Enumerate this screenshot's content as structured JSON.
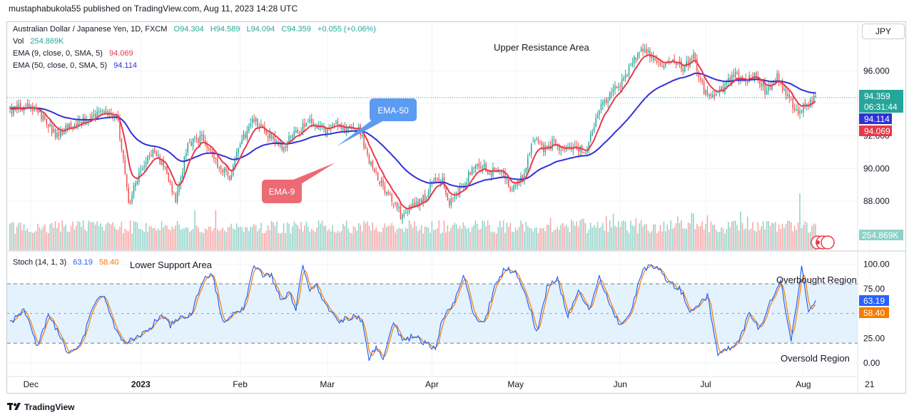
{
  "header": {
    "publisher_line": "mustaphabukola55 published on TradingView.com, Aug 11, 2023 14:28 UTC"
  },
  "currency_button": "JPY",
  "legend": {
    "symbol": "Australian Dollar / Japanese Yen, 1D, FXCM",
    "o": "O94.304",
    "h": "H94.589",
    "l": "L94.094",
    "c": "C94.359",
    "change": "+0.055 (+0.06%)",
    "vol_label": "Vol",
    "vol_value": "254.869K",
    "ema9_label": "EMA (9, close, 0, SMA, 5)",
    "ema9_value": "94.069",
    "ema50_label": "EMA (50, close, 0, SMA, 5)",
    "ema50_value": "94.114",
    "stoch_label": "Stoch (14, 1, 3)",
    "stoch_k": "63.19",
    "stoch_d": "58.40"
  },
  "annotations": {
    "upper_resistance": "Upper Resistance Area",
    "lower_support": "Lower Support Area",
    "ema50_callout": "EMA-50",
    "ema9_callout": "EMA-9",
    "overbought": "Overbought Region",
    "oversold": "Oversold Region"
  },
  "price_tags": {
    "last": "94.359",
    "countdown": "06:31:44",
    "ema50": "94.114",
    "ema9": "94.069",
    "volume": "254.869K",
    "stoch_k": "63.19",
    "stoch_d": "58.40"
  },
  "footer": {
    "brand": "TradingView"
  },
  "colors": {
    "up": "#26a69a",
    "down": "#ef5350",
    "ema9": "#e8394a",
    "ema50": "#3131d6",
    "vol_up": "#8fd1c8",
    "vol_down": "#f5a4a4",
    "stoch_k": "#2962ff",
    "stoch_d": "#f57c00",
    "callout50": "#5b9cf2",
    "callout9": "#ec6a74",
    "stoch_band": "#e3f2fd"
  },
  "chart_data": [
    {
      "type": "candlestick",
      "y_axis_ticks": [
        "96.000",
        "94.000",
        "92.000",
        "90.000",
        "88.000"
      ],
      "y_tick_values": [
        96,
        94,
        92,
        90,
        88
      ],
      "ylim": [
        85.9,
        98.6
      ],
      "x_axis_ticks": [
        "Dec",
        "2023",
        "Feb",
        "Mar",
        "Apr",
        "May",
        "Jun",
        "Jul",
        "Aug",
        "21"
      ],
      "keypoints": [
        [
          0,
          93.6
        ],
        [
          10,
          93.9
        ],
        [
          18,
          93.2
        ],
        [
          26,
          92.1
        ],
        [
          36,
          92.7
        ],
        [
          45,
          93.1
        ],
        [
          54,
          93.6
        ],
        [
          62,
          92.9
        ],
        [
          68,
          87.8
        ],
        [
          74,
          89.6
        ],
        [
          82,
          91.2
        ],
        [
          88,
          90.2
        ],
        [
          95,
          88.0
        ],
        [
          102,
          91.5
        ],
        [
          110,
          91.9
        ],
        [
          118,
          90.4
        ],
        [
          126,
          89.4
        ],
        [
          132,
          91.6
        ],
        [
          140,
          93.0
        ],
        [
          148,
          92.1
        ],
        [
          156,
          91.3
        ],
        [
          164,
          92.2
        ],
        [
          172,
          92.9
        ],
        [
          180,
          92.3
        ],
        [
          188,
          92.7
        ],
        [
          194,
          92.5
        ],
        [
          200,
          92.6
        ],
        [
          206,
          90.5
        ],
        [
          212,
          89.3
        ],
        [
          218,
          88.2
        ],
        [
          224,
          87.2
        ],
        [
          232,
          87.7
        ],
        [
          238,
          88.2
        ],
        [
          244,
          89.6
        ],
        [
          248,
          89.2
        ],
        [
          252,
          87.9
        ],
        [
          258,
          88.6
        ],
        [
          264,
          89.7
        ],
        [
          270,
          90.2
        ],
        [
          276,
          89.8
        ],
        [
          282,
          89.9
        ],
        [
          288,
          88.6
        ],
        [
          294,
          89.5
        ],
        [
          300,
          91.9
        ],
        [
          306,
          91.1
        ],
        [
          312,
          91.6
        ],
        [
          318,
          90.9
        ],
        [
          324,
          91.4
        ],
        [
          330,
          90.9
        ],
        [
          336,
          93.1
        ],
        [
          342,
          94.3
        ],
        [
          350,
          95.2
        ],
        [
          356,
          96.4
        ],
        [
          362,
          97.4
        ],
        [
          368,
          96.8
        ],
        [
          374,
          96.1
        ],
        [
          380,
          96.6
        ],
        [
          386,
          96.2
        ],
        [
          392,
          96.9
        ],
        [
          398,
          94.7
        ],
        [
          404,
          94.2
        ],
        [
          410,
          95.1
        ],
        [
          416,
          95.8
        ],
        [
          422,
          95.3
        ],
        [
          428,
          95.8
        ],
        [
          434,
          94.6
        ],
        [
          440,
          95.7
        ],
        [
          446,
          94.5
        ],
        [
          452,
          93.4
        ],
        [
          458,
          94.0
        ],
        [
          462,
          94.36
        ]
      ],
      "vol_ylim": [
        0,
        175
      ]
    },
    {
      "type": "line",
      "name": "Stoch (14, 1, 3)",
      "y_axis_ticks": [
        "100.00",
        "75.00",
        "25.00",
        "0.00"
      ],
      "y_tick_values": [
        100,
        75,
        25,
        0
      ],
      "ylim": [
        -8,
        106
      ],
      "k_keypoints": [
        [
          0,
          40
        ],
        [
          8,
          55
        ],
        [
          16,
          15
        ],
        [
          22,
          50
        ],
        [
          28,
          30
        ],
        [
          34,
          8
        ],
        [
          42,
          25
        ],
        [
          48,
          60
        ],
        [
          54,
          70
        ],
        [
          60,
          35
        ],
        [
          66,
          20
        ],
        [
          72,
          25
        ],
        [
          78,
          30
        ],
        [
          86,
          48
        ],
        [
          92,
          38
        ],
        [
          98,
          48
        ],
        [
          104,
          48
        ],
        [
          110,
          82
        ],
        [
          116,
          90
        ],
        [
          122,
          42
        ],
        [
          128,
          50
        ],
        [
          134,
          55
        ],
        [
          140,
          98
        ],
        [
          146,
          88
        ],
        [
          150,
          88
        ],
        [
          156,
          62
        ],
        [
          160,
          72
        ],
        [
          164,
          54
        ],
        [
          168,
          100
        ],
        [
          172,
          74
        ],
        [
          176,
          78
        ],
        [
          182,
          55
        ],
        [
          188,
          42
        ],
        [
          192,
          44
        ],
        [
          198,
          48
        ],
        [
          202,
          42
        ],
        [
          206,
          4
        ],
        [
          210,
          16
        ],
        [
          214,
          4
        ],
        [
          220,
          40
        ],
        [
          226,
          22
        ],
        [
          232,
          28
        ],
        [
          238,
          20
        ],
        [
          244,
          15
        ],
        [
          248,
          45
        ],
        [
          254,
          58
        ],
        [
          260,
          90
        ],
        [
          266,
          46
        ],
        [
          272,
          40
        ],
        [
          278,
          78
        ],
        [
          284,
          96
        ],
        [
          290,
          92
        ],
        [
          296,
          70
        ],
        [
          302,
          30
        ],
        [
          308,
          76
        ],
        [
          314,
          84
        ],
        [
          320,
          46
        ],
        [
          326,
          76
        ],
        [
          332,
          52
        ],
        [
          338,
          86
        ],
        [
          344,
          60
        ],
        [
          350,
          38
        ],
        [
          356,
          52
        ],
        [
          362,
          90
        ],
        [
          366,
          98
        ],
        [
          372,
          96
        ],
        [
          378,
          80
        ],
        [
          384,
          76
        ],
        [
          390,
          54
        ],
        [
          396,
          60
        ],
        [
          400,
          68
        ],
        [
          406,
          10
        ],
        [
          412,
          14
        ],
        [
          418,
          22
        ],
        [
          424,
          50
        ],
        [
          430,
          34
        ],
        [
          436,
          62
        ],
        [
          442,
          82
        ],
        [
          448,
          20
        ],
        [
          454,
          96
        ],
        [
          458,
          54
        ],
        [
          462,
          63
        ]
      ]
    }
  ]
}
